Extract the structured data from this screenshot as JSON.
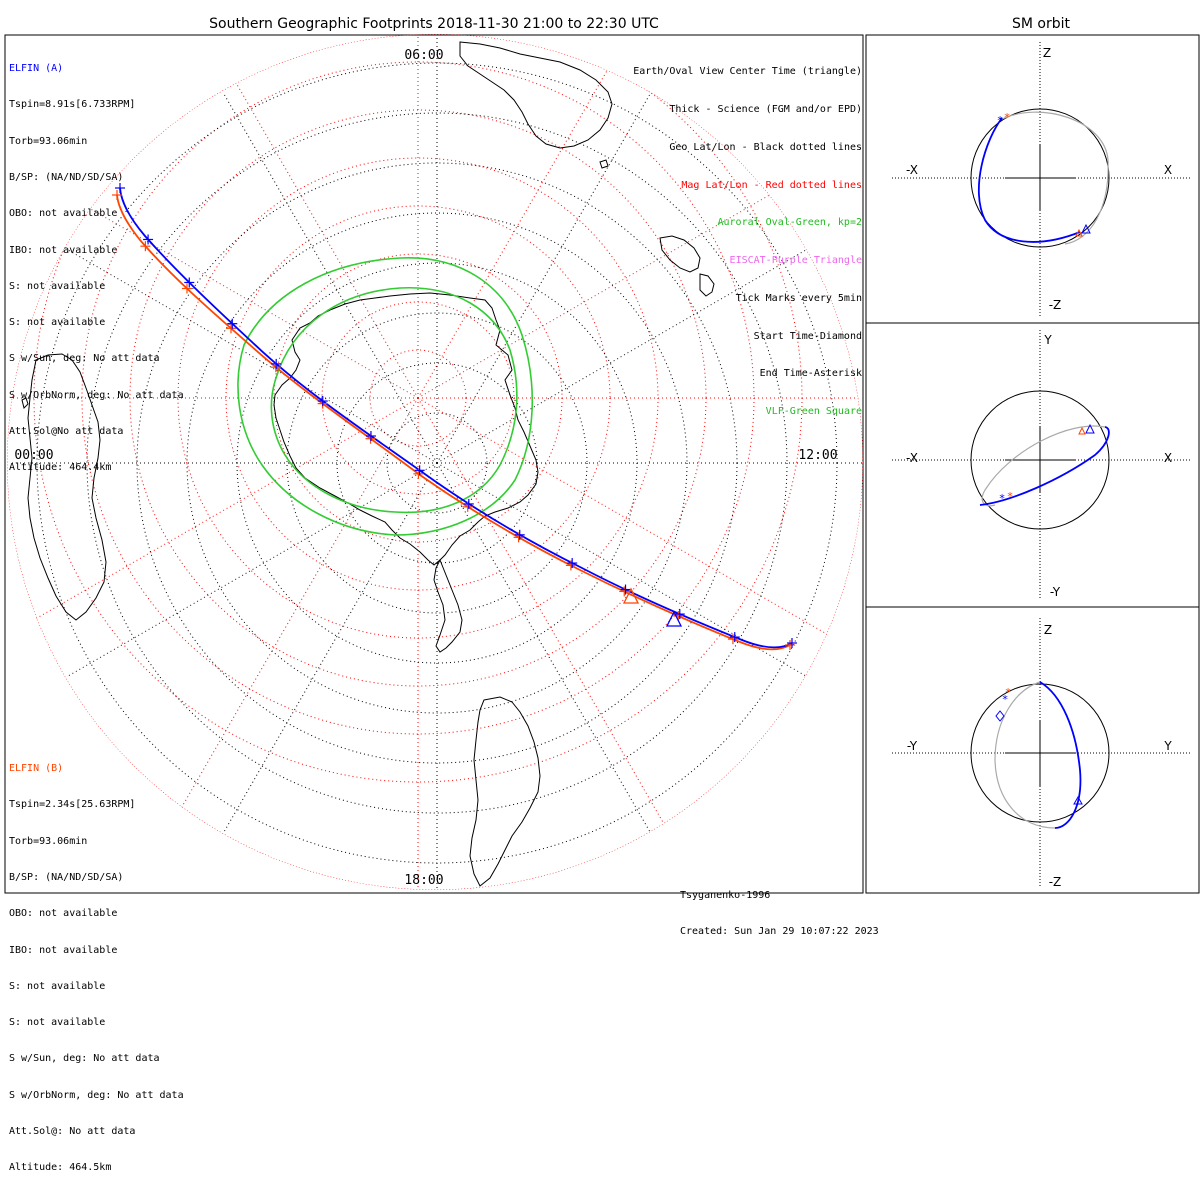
{
  "main_title": "Southern Geographic Footprints 2018-11-30 21:00 to 22:30 UTC",
  "side_title": "SM orbit",
  "time_labels": {
    "top": "06:00",
    "left": "00:00",
    "right": "12:00",
    "bottom": "18:00"
  },
  "probe_a": {
    "name": "ELFIN (A)",
    "color": "#0000ff",
    "lines": [
      "Tspin=8.91s[6.733RPM]",
      "Torb=93.06min",
      "B/SP: (NA/ND/SD/SA)",
      "OBO: not available",
      "IBO: not available",
      "S: not available",
      "S: not available",
      "S w/Sun, deg: No att data",
      "S w/OrbNorm, deg: No att data",
      "Att.Sol@No att data",
      "Altitude: 464.4km"
    ]
  },
  "probe_b": {
    "name": "ELFIN (B)",
    "color": "#ff4500",
    "lines": [
      "Tspin=2.34s[25.63RPM]",
      "Torb=93.06min",
      "B/SP: (NA/ND/SD/SA)",
      "OBO: not available",
      "IBO: not available",
      "S: not available",
      "S: not available",
      "S w/Sun, deg: No att data",
      "S w/OrbNorm, deg: No att data",
      "Att.Sol@: No att data",
      "Altitude: 464.5km"
    ]
  },
  "legend": [
    {
      "text": "Earth/Oval View Center Time (triangle)",
      "color": "#000000"
    },
    {
      "text": "Thick - Science (FGM and/or EPD)",
      "color": "#000000"
    },
    {
      "text": "Geo Lat/Lon - Black dotted lines",
      "color": "#000000"
    },
    {
      "text": "Mag Lat/Lon - Red dotted lines",
      "color": "#ff0000"
    },
    {
      "text": "Auroral Oval-Green, kp=2",
      "color": "#22bb22"
    },
    {
      "text": "EISCAT-Purple Triangle",
      "color": "#ee66ee"
    },
    {
      "text": "Tick Marks every 5min",
      "color": "#000000"
    },
    {
      "text": "Start Time-Diamond",
      "color": "#000000"
    },
    {
      "text": "End Time-Asterisk",
      "color": "#000000"
    },
    {
      "text": "VLF-Green Square",
      "color": "#22bb22"
    }
  ],
  "footer": {
    "model": "Tsyganenko-1996",
    "created": "Created: Sun Jan 29 10:07:22 2023"
  },
  "orbit_panels": [
    {
      "top_axis": "Z",
      "bottom_axis": "-Z",
      "left_axis": "-X",
      "right_axis": "X"
    },
    {
      "top_axis": "Y",
      "bottom_axis": "-Y",
      "left_axis": "-X",
      "right_axis": "X"
    },
    {
      "top_axis": "Z",
      "bottom_axis": "-Z",
      "left_axis": "-Y",
      "right_axis": "Y"
    }
  ],
  "colors": {
    "probe_a": "#0000ff",
    "probe_b": "#ff4500",
    "auroral_oval": "#33cc33",
    "mag_grid": "#ff0000",
    "geo_grid": "#000000",
    "orbit_back": "#aaaaaa"
  }
}
